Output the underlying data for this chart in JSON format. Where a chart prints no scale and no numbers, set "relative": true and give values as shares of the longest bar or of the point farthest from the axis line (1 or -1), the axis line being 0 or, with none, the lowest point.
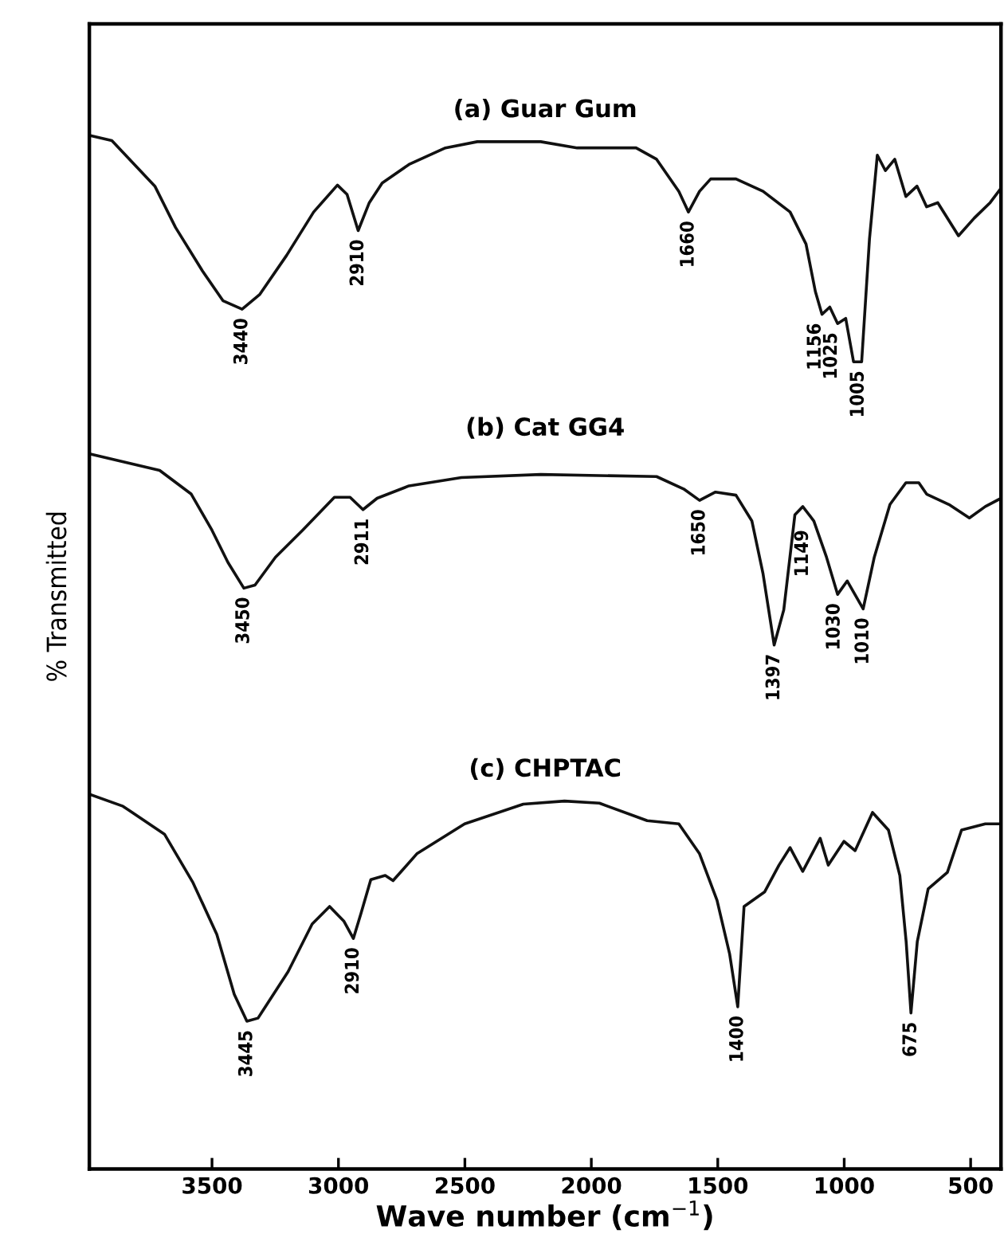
{
  "chart_data": {
    "type": "line",
    "relative": true,
    "xlabel": "Wave number (cm$^{−1}$)",
    "ylabel": "% Transmitted",
    "xlim": [
      3985,
      380
    ],
    "xticks": [
      3500,
      3000,
      2500,
      2000,
      1500,
      1000,
      500
    ],
    "grid": false,
    "legend": false,
    "marker": "none",
    "line_style": "solid",
    "series": [
      {
        "name": "(a) Guar Gum",
        "color": "#111111",
        "x": [
          3984,
          3896,
          3726,
          3644,
          3538,
          3456,
          3381,
          3312,
          3205,
          3098,
          3004,
          2966,
          2922,
          2878,
          2827,
          2721,
          2577,
          2451,
          2200,
          2056,
          1823,
          1742,
          1654,
          1616,
          1572,
          1528,
          1428,
          1321,
          1214,
          1151,
          1114,
          1088,
          1057,
          1026,
          994,
          963,
          931,
          900,
          869,
          837,
          800,
          756,
          712,
          674,
          630,
          548,
          486,
          423,
          380
        ],
        "values": [
          1.0,
          0.995,
          0.951,
          0.911,
          0.869,
          0.84,
          0.832,
          0.846,
          0.884,
          0.926,
          0.952,
          0.943,
          0.908,
          0.935,
          0.954,
          0.972,
          0.988,
          0.994,
          0.994,
          0.988,
          0.988,
          0.977,
          0.946,
          0.926,
          0.946,
          0.958,
          0.958,
          0.946,
          0.926,
          0.895,
          0.849,
          0.827,
          0.834,
          0.818,
          0.823,
          0.781,
          0.781,
          0.9,
          0.981,
          0.966,
          0.977,
          0.941,
          0.951,
          0.931,
          0.935,
          0.903,
          0.92,
          0.935,
          0.949
        ]
      },
      {
        "name": "(b) Cat GG4",
        "color": "#111111",
        "x": [
          3984,
          3707,
          3582,
          3500,
          3437,
          3374,
          3330,
          3249,
          3142,
          3016,
          2954,
          2903,
          2847,
          2721,
          2514,
          2200,
          1742,
          1635,
          1572,
          1509,
          1428,
          1365,
          1321,
          1277,
          1239,
          1195,
          1164,
          1120,
          1070,
          1026,
          988,
          925,
          881,
          819,
          756,
          705,
          674,
          586,
          505,
          442,
          380
        ],
        "values": [
          0.692,
          0.676,
          0.653,
          0.618,
          0.587,
          0.562,
          0.565,
          0.592,
          0.618,
          0.65,
          0.65,
          0.638,
          0.649,
          0.661,
          0.669,
          0.672,
          0.67,
          0.658,
          0.647,
          0.655,
          0.652,
          0.627,
          0.576,
          0.507,
          0.541,
          0.633,
          0.641,
          0.627,
          0.592,
          0.556,
          0.569,
          0.542,
          0.592,
          0.643,
          0.664,
          0.664,
          0.653,
          0.643,
          0.63,
          0.641,
          0.649
        ]
      },
      {
        "name": "(c) CHPTAC",
        "color": "#111111",
        "x": [
          3977,
          3852,
          3688,
          3575,
          3481,
          3412,
          3362,
          3318,
          3199,
          3104,
          3035,
          2979,
          2941,
          2910,
          2872,
          2815,
          2784,
          2690,
          2501,
          2269,
          2106,
          1968,
          1779,
          1654,
          1572,
          1503,
          1453,
          1421,
          1396,
          1315,
          1258,
          1214,
          1164,
          1095,
          1063,
          1001,
          957,
          888,
          825,
          780,
          755,
          736,
          711,
          668,
          592,
          536,
          442,
          380
        ],
        "values": [
          0.362,
          0.351,
          0.324,
          0.277,
          0.227,
          0.169,
          0.143,
          0.146,
          0.191,
          0.237,
          0.254,
          0.24,
          0.223,
          0.248,
          0.28,
          0.284,
          0.279,
          0.305,
          0.334,
          0.353,
          0.356,
          0.354,
          0.337,
          0.334,
          0.305,
          0.26,
          0.208,
          0.157,
          0.254,
          0.268,
          0.294,
          0.311,
          0.288,
          0.32,
          0.294,
          0.317,
          0.308,
          0.345,
          0.328,
          0.284,
          0.22,
          0.151,
          0.22,
          0.271,
          0.287,
          0.328,
          0.334,
          0.334
        ]
      }
    ],
    "annotations": [
      {
        "text": "3440",
        "x": 3381,
        "y": 0.832
      },
      {
        "text": "2910",
        "x": 2922,
        "y": 0.908
      },
      {
        "text": "1660",
        "x": 1616,
        "y": 0.926
      },
      {
        "text": "1156",
        "x": 1114,
        "y": 0.849
      },
      {
        "text": "1025",
        "x": 1050,
        "y": 0.834
      },
      {
        "text": "1005",
        "x": 944,
        "y": 0.781
      },
      {
        "text": "3450",
        "x": 3374,
        "y": 0.562
      },
      {
        "text": "2911",
        "x": 2903,
        "y": 0.638
      },
      {
        "text": "1650",
        "x": 1572,
        "y": 0.647
      },
      {
        "text": "1397",
        "x": 1277,
        "y": 0.507
      },
      {
        "text": "1149",
        "x": 1164,
        "y": 0.641
      },
      {
        "text": "1030",
        "x": 1039,
        "y": 0.556
      },
      {
        "text": "1010",
        "x": 925,
        "y": 0.542
      },
      {
        "text": "3445",
        "x": 3362,
        "y": 0.143
      },
      {
        "text": "2910",
        "x": 2941,
        "y": 0.223
      },
      {
        "text": "1400",
        "x": 1421,
        "y": 0.157
      },
      {
        "text": "675",
        "x": 736,
        "y": 0.151
      }
    ]
  }
}
